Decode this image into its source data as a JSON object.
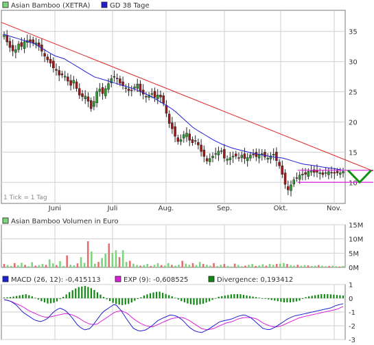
{
  "colors": {
    "up": "#2e9a2e",
    "down": "#a01818",
    "gd_line": "#1f1fd0",
    "trend_line": "#e02020",
    "channel_line": "#d81fd8",
    "forecast_v": "#119011",
    "grid": "#cfcfcf",
    "macd_line": "#1f1fd0",
    "exp_line": "#d81fd8",
    "hist": "#118811",
    "vol_up": "#7fd37f",
    "vol_down": "#e07070"
  },
  "price_panel": {
    "legend": [
      {
        "label": "Asian Bamboo (XETRA)",
        "color": "#7fd37f"
      },
      {
        "label": "GD 38 Tage",
        "color": "#1f1fd0"
      }
    ],
    "yticks": [
      10,
      15,
      20,
      25,
      30,
      35
    ],
    "ymin": 6.5,
    "ymax": 38.5,
    "tick_note": "1 Tick = 1 Tag",
    "month_labels": [
      "Juni",
      "Juli",
      "Aug.",
      "Sep.",
      "Okt.",
      "Nov."
    ]
  },
  "volume_panel": {
    "legend": [
      {
        "label": "Asian Bamboo Volumen in Euro",
        "color": "#7fd37f"
      }
    ],
    "yticks": [
      "0M",
      "5M",
      "10M",
      "15M"
    ],
    "ymax": 15
  },
  "macd_panel": {
    "legend": [
      {
        "label": "MACD (26, 12): -0,415113",
        "color": "#1f1fd0"
      },
      {
        "label": "EXP (9): -0,608525",
        "color": "#d81fd8"
      },
      {
        "label": "Divergence: 0,193412",
        "color": "#118811"
      }
    ],
    "yticks": [
      1,
      0,
      -1,
      -2,
      -3
    ],
    "ymin": -3,
    "ymax": 1
  },
  "chart_data": [
    {
      "type": "candlestick",
      "series": [
        {
          "name": "Asian Bamboo (XETRA)"
        },
        {
          "name": "GD 38 Tage"
        }
      ],
      "y_range": [
        6.5,
        38.5
      ],
      "closes_approx": [
        34.5,
        33,
        32,
        31.5,
        33,
        32.5,
        33.5,
        33.5,
        33,
        33.2,
        32.5,
        31.5,
        30.5,
        30,
        29,
        28.5,
        27.5,
        28,
        27,
        26,
        27,
        25,
        24,
        24.5,
        23.5,
        22,
        24,
        26,
        24.5,
        25.5,
        26.5,
        27.5,
        27.5,
        26.5,
        26,
        25.5,
        25,
        25.5,
        26.5,
        25,
        24.5,
        24,
        25,
        24,
        24.5,
        24,
        22.5,
        20,
        19,
        17.5,
        16.5,
        17.5,
        18.5,
        17,
        16.5,
        17,
        15.5,
        14.5,
        13.5,
        14,
        14.5,
        15,
        15.5,
        14,
        13.8,
        14.2,
        14.5,
        14,
        14.5,
        13.8,
        14.3,
        14.8,
        14.2,
        14.6,
        14.8,
        13.8,
        14.2,
        14.8,
        13.5,
        12.5,
        10.5,
        8.5,
        9.5,
        10.5,
        10.8,
        11.5,
        11.2,
        11.8,
        12,
        11.5,
        11.8,
        11.2,
        11.6,
        11.8,
        11.4,
        11.6,
        11.5,
        11.8
      ],
      "gd38_approx": [
        34.5,
        34,
        33.5,
        33,
        32,
        31,
        30.5,
        29.5,
        28.5,
        27.5,
        27,
        26.5,
        26,
        25.5,
        24.8,
        24,
        23,
        22,
        20.5,
        19,
        18,
        17,
        16.2,
        15.6,
        15.2,
        14.8,
        14.5,
        14.2,
        14,
        13.5,
        13,
        12.8,
        12.5,
        12.3,
        12
      ],
      "trendline": {
        "from": 36.5,
        "to": 12.2
      },
      "channel": {
        "upper": 12,
        "lower": 10
      },
      "month_ticks": [
        "Juni",
        "Juli",
        "Aug.",
        "Sep.",
        "Okt.",
        "Nov."
      ]
    },
    {
      "type": "bar",
      "series": [
        {
          "name": "Asian Bamboo Volumen in Euro"
        }
      ],
      "unit": "M",
      "y_range": [
        0,
        15
      ],
      "values_approx": [
        1.2,
        0.8,
        0.5,
        1.5,
        0.7,
        1.6,
        0.9,
        0.4,
        1.8,
        0.6,
        0.8,
        1.2,
        0.9,
        2.8,
        1.4,
        0.8,
        2.2,
        0.5,
        4.2,
        0.9,
        0.7,
        1.4,
        3.6,
        1.6,
        9.2,
        5.6,
        1.3,
        1.9,
        3.3,
        4.8,
        8.4,
        5.1,
        6.0,
        3.6,
        6.0,
        1.9,
        2.3,
        1.3,
        0.8,
        0.6,
        0.8,
        1.2,
        0.5,
        0.9,
        1.5,
        0.8,
        0.6,
        1.5,
        0.9,
        0.6,
        0.9,
        2.3,
        1.3,
        0.9,
        1.5,
        0.8,
        1.9,
        1.2,
        0.9,
        0.6,
        1.5,
        0.5,
        0.9,
        1.2,
        0.5,
        0.3,
        1.3,
        0.8,
        0.4,
        0.6,
        0.9,
        1.2,
        0.5,
        0.7,
        1.1,
        0.6,
        1.2,
        0.9,
        1.2,
        1.3,
        1.5,
        1.2,
        0.8,
        0.6,
        0.9,
        0.6,
        0.8,
        0.7,
        0.5,
        0.6,
        0.8,
        0.6,
        0.4,
        0.5,
        0.6,
        0.4,
        0.3,
        0.5
      ]
    },
    {
      "type": "line",
      "series": [
        {
          "name": "MACD (26, 12)"
        },
        {
          "name": "EXP (9)"
        },
        {
          "name": "Divergence"
        }
      ],
      "y_range": [
        -3,
        1
      ],
      "macd_approx": [
        -0.1,
        -0.2,
        -0.5,
        -1.0,
        -1.3,
        -1.6,
        -1.7,
        -1.5,
        -1.0,
        -0.7,
        -0.9,
        -1.4,
        -2.0,
        -2.3,
        -2.2,
        -1.6,
        -1.0,
        -0.7,
        -0.4,
        -0.9,
        -1.6,
        -2.2,
        -2.4,
        -2.3,
        -2.0,
        -1.6,
        -1.4,
        -1.2,
        -1.3,
        -1.6,
        -2.1,
        -2.4,
        -2.5,
        -2.3,
        -2.0,
        -1.7,
        -1.6,
        -1.5,
        -1.3,
        -1.2,
        -1.4,
        -1.8,
        -2.2,
        -2.3,
        -2.1,
        -1.8,
        -1.5,
        -1.3,
        -1.2,
        -1.1,
        -1.0,
        -0.9,
        -0.8,
        -0.7,
        -0.5,
        -0.4
      ],
      "exp_approx": [
        -0.1,
        -0.2,
        -0.4,
        -0.6,
        -0.9,
        -1.1,
        -1.3,
        -1.4,
        -1.3,
        -1.2,
        -1.1,
        -1.2,
        -1.4,
        -1.7,
        -1.9,
        -1.9,
        -1.6,
        -1.3,
        -1.0,
        -0.9,
        -1.1,
        -1.5,
        -1.8,
        -2.0,
        -2.1,
        -1.9,
        -1.7,
        -1.5,
        -1.4,
        -1.4,
        -1.6,
        -1.9,
        -2.2,
        -2.3,
        -2.2,
        -2.0,
        -1.8,
        -1.7,
        -1.5,
        -1.4,
        -1.4,
        -1.5,
        -1.8,
        -2.0,
        -2.1,
        -2.0,
        -1.8,
        -1.6,
        -1.4,
        -1.3,
        -1.2,
        -1.1,
        -1.0,
        -0.9,
        -0.8,
        -0.6
      ],
      "divergence_approx": [
        0.05,
        0.1,
        0.2,
        0.3,
        0.1,
        -0.2,
        -0.4,
        -0.3,
        0.1,
        0.5,
        0.8,
        0.9,
        0.7,
        0.3,
        -0.1,
        -0.4,
        -0.5,
        -0.4,
        -0.1,
        0.2,
        0.4,
        0.5,
        0.3,
        0.1,
        -0.2,
        -0.4,
        -0.5,
        -0.4,
        -0.2,
        0.1,
        0.2,
        0.3,
        0.3,
        0.2,
        0.1,
        0.0,
        -0.1,
        -0.2,
        -0.3,
        -0.3,
        -0.2,
        0.1,
        0.2,
        0.3,
        0.3,
        0.25,
        0.2
      ]
    }
  ]
}
